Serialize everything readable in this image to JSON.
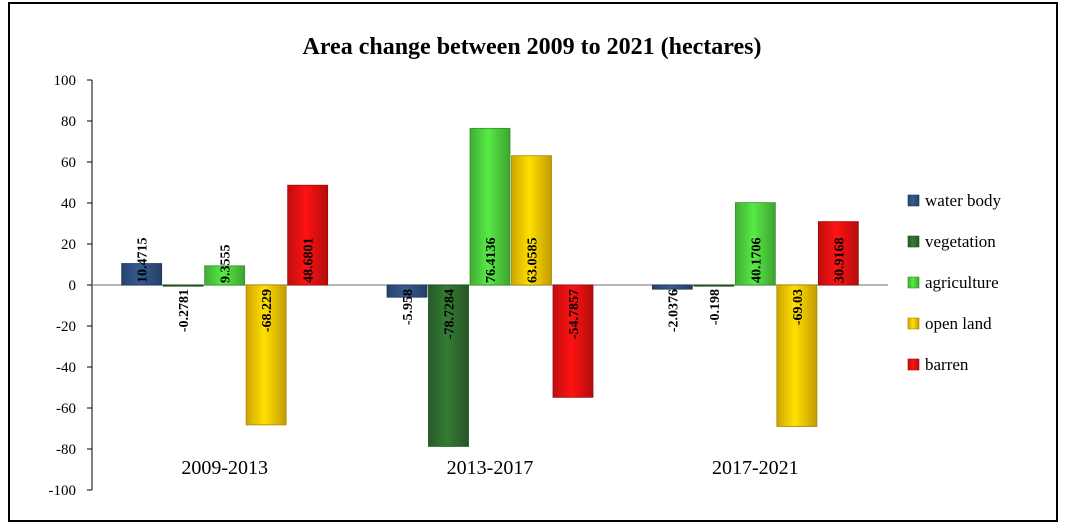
{
  "chart_data": {
    "type": "bar",
    "title": "Area change between 2009 to 2021 (hectares)",
    "categories": [
      "2009-2013",
      "2013-2017",
      "2017-2021"
    ],
    "ylim": [
      -100,
      100
    ],
    "yticks": [
      100,
      80,
      60,
      40,
      20,
      0,
      -20,
      -40,
      -60,
      -80,
      -100
    ],
    "legend_position": "right",
    "series": [
      {
        "name": "water body",
        "color": "#2f4f7f",
        "values": [
          10.4715,
          -5.958,
          -2.0376
        ],
        "labels": [
          "10.4715",
          "-5.958",
          "-2.0376"
        ]
      },
      {
        "name": "vegetation",
        "color": "#2e6b2e",
        "values": [
          -0.2781,
          -78.7284,
          -0.198
        ],
        "labels": [
          "-0.2781",
          "-78.7284",
          "-0.198"
        ]
      },
      {
        "name": "agriculture",
        "color": "#4ccc3c",
        "values": [
          9.3555,
          76.4136,
          40.1706
        ],
        "labels": [
          "9.3555",
          "76.4136",
          "40.1706"
        ]
      },
      {
        "name": "open land",
        "color": "#f2c200",
        "values": [
          -68.229,
          63.0585,
          -69.03
        ],
        "labels": [
          "-68.229",
          "63.0585",
          "-69.03"
        ]
      },
      {
        "name": "barren",
        "color": "#e01010",
        "values": [
          48.6801,
          -54.7857,
          30.9168
        ],
        "labels": [
          "48.6801",
          "-54.7857",
          "30.9168"
        ]
      }
    ]
  }
}
